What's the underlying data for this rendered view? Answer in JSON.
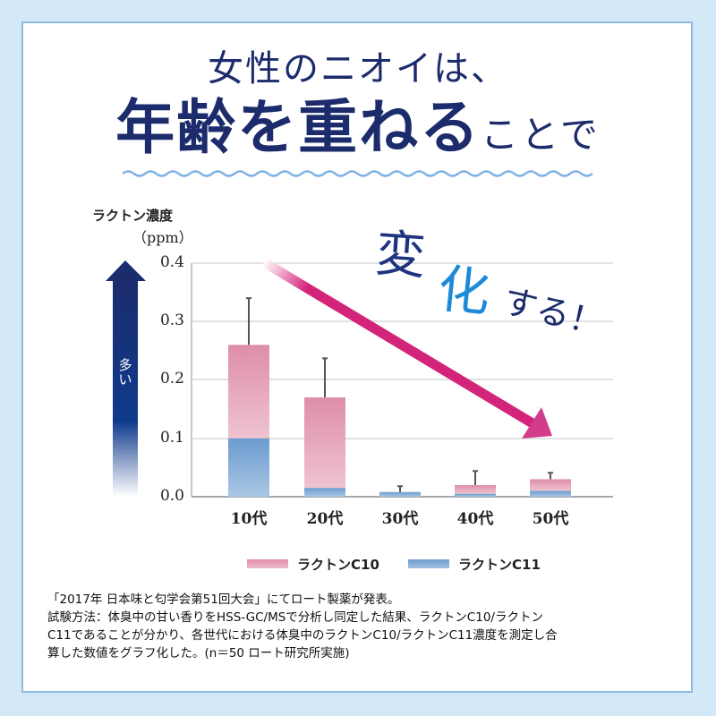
{
  "header": {
    "line1": "女性のニオイは、",
    "line2_big": "年齢を重ねる",
    "line2_small": "ことで"
  },
  "callout": {
    "part1": "変",
    "part2": "化",
    "part3": "する！"
  },
  "axis": {
    "unit_label": "ラクトン濃度",
    "unit_sub": "（ppm）",
    "more_label": "多い",
    "yticks": [
      "0.4",
      "0.3",
      "0.2",
      "0.1",
      "0.0"
    ],
    "xticks": [
      "10代",
      "20代",
      "30代",
      "40代",
      "50代"
    ]
  },
  "legend": {
    "c10": "ラクトンC10",
    "c11": "ラクトンC11"
  },
  "footnote": {
    "line1": "「2017年 日本味と匂学会第51回大会」にてロート製薬が発表。",
    "line2": "試験方法：体臭中の甘い香りをHSS-GC/MSで分析し同定した結果、ラクトンC10/ラクトン",
    "line3": "C11であることが分かり、各世代における体臭中のラクトンC10/ラクトンC11濃度を測定し合",
    "line4": "算した数値をグラフ化した。(n＝50 ロート研究所実施)"
  },
  "colors": {
    "title": "#1c2b6b",
    "c10": "#e08fa9",
    "c11": "#6e9fd0",
    "trend_arrow": "#d4237a",
    "background": "#d3e9f8"
  },
  "chart_data": {
    "type": "bar",
    "stacked": true,
    "title": "ラクトン濃度（ppm）",
    "xlabel": "",
    "ylabel": "ラクトン濃度（ppm）",
    "ylim": [
      0,
      0.4
    ],
    "yticks": [
      0.0,
      0.1,
      0.2,
      0.3,
      0.4
    ],
    "grid": true,
    "legend_position": "bottom",
    "categories": [
      "10代",
      "20代",
      "30代",
      "40代",
      "50代"
    ],
    "series": [
      {
        "name": "ラクトンC11",
        "values": [
          0.1,
          0.015,
          0.008,
          0.005,
          0.01
        ]
      },
      {
        "name": "ラクトンC10",
        "values": [
          0.16,
          0.155,
          0.0,
          0.015,
          0.02
        ]
      }
    ],
    "totals": [
      0.26,
      0.17,
      0.008,
      0.02,
      0.03
    ],
    "error_bar_tops": [
      0.34,
      0.237,
      0.018,
      0.044,
      0.041
    ],
    "annotations": [
      "変化する！",
      "downward trend arrow from 10代 to 50代"
    ]
  }
}
